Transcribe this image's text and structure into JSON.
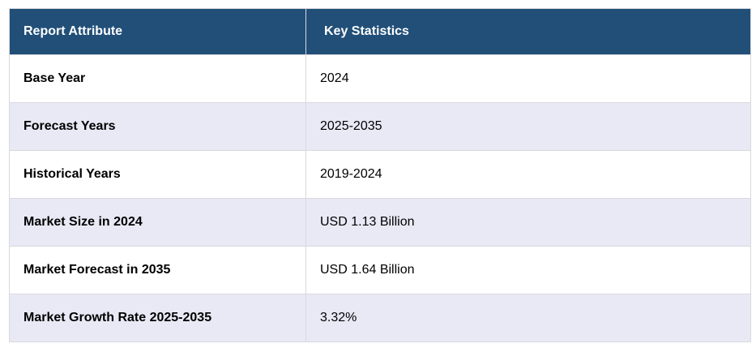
{
  "table": {
    "headers": [
      "Report Attribute",
      "Key Statistics"
    ],
    "rows": [
      [
        "Base Year",
        "2024"
      ],
      [
        "Forecast Years",
        "2025-2035"
      ],
      [
        "Historical Years",
        "2019-2024"
      ],
      [
        "Market Size in 2024",
        "USD 1.13 Billion"
      ],
      [
        "Market Forecast in 2035",
        "USD 1.64 Billion"
      ],
      [
        "Market Growth Rate 2025-2035",
        "3.32%"
      ]
    ]
  },
  "colors": {
    "header_bg": "#214f78",
    "stripe": "#e8e9f5"
  }
}
